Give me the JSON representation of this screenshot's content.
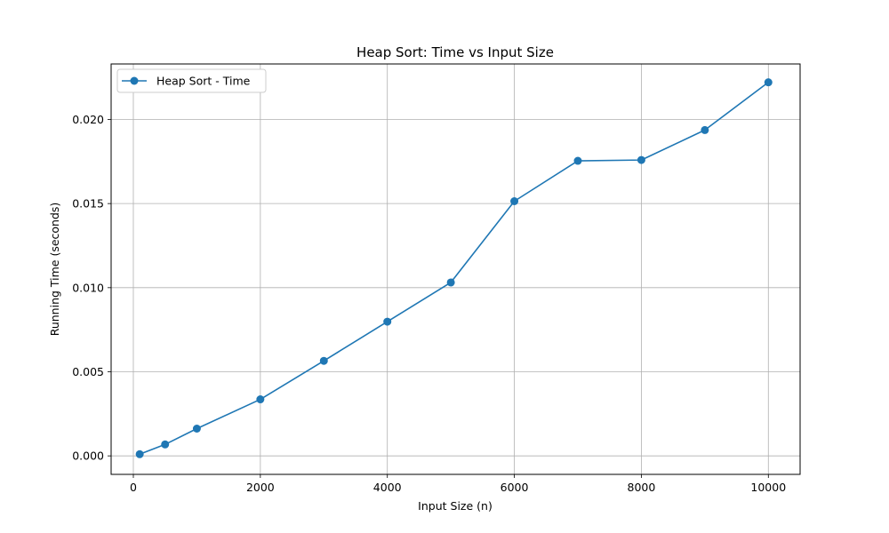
{
  "chart_data": {
    "type": "line",
    "title": "Heap Sort: Time vs Input Size",
    "xlabel": "Input Size (n)",
    "ylabel": "Running Time (seconds)",
    "xlim": [
      -350,
      10500
    ],
    "ylim": [
      -0.0011,
      0.0233
    ],
    "xticks": [
      0,
      2000,
      4000,
      6000,
      8000,
      10000
    ],
    "xtick_labels": [
      "0",
      "2000",
      "4000",
      "6000",
      "8000",
      "10000"
    ],
    "yticks": [
      0.0,
      0.005,
      0.01,
      0.015,
      0.02
    ],
    "ytick_labels": [
      "0.000",
      "0.005",
      "0.010",
      "0.015",
      "0.020"
    ],
    "grid": true,
    "legend_position": "top-left",
    "series": [
      {
        "name": "Heap Sort - Time",
        "color": "#1f77b4",
        "marker": "circle",
        "x": [
          100,
          500,
          1000,
          2000,
          3000,
          4000,
          5000,
          6000,
          7000,
          8000,
          9000,
          10000
        ],
        "y": [
          0.0001,
          0.00068,
          0.00162,
          0.00336,
          0.00565,
          0.00798,
          0.01031,
          0.01514,
          0.01754,
          0.01759,
          0.01937,
          0.02221
        ]
      }
    ]
  }
}
